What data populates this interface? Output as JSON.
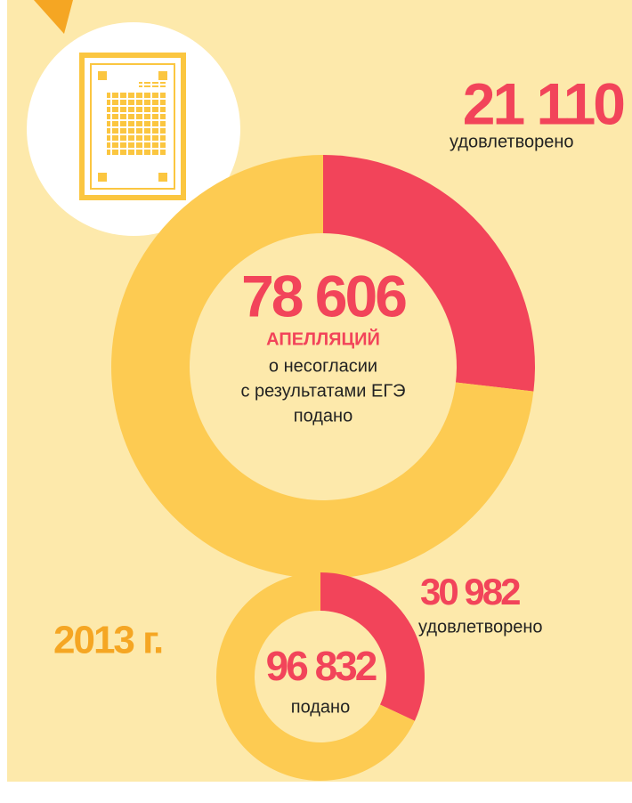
{
  "chart_data": [
    {
      "type": "donut",
      "total": 78606,
      "total_label": "78 606",
      "caption_head": "АПЕЛЛЯЦИЙ",
      "caption": [
        "о несогласии",
        "с результатами ЕГЭ",
        "подано"
      ],
      "value": 21110,
      "value_label": "21 110",
      "value_caption": "удовлетворено",
      "colors": {
        "value": "#f2445a",
        "rest": "#fdcb52"
      }
    },
    {
      "type": "donut",
      "title": "2013 г.",
      "total": 96832,
      "total_label": "96 832",
      "caption": [
        "подано"
      ],
      "value": 30982,
      "value_label": "30 982",
      "value_caption": "удовлетворено",
      "colors": {
        "value": "#f2445a",
        "rest": "#fdcb52"
      }
    }
  ]
}
